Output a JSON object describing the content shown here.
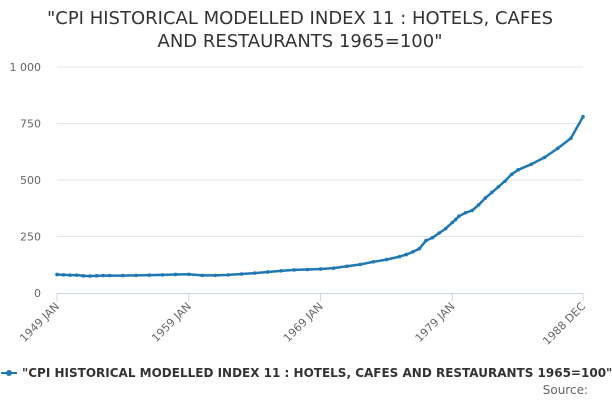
{
  "chart_data": {
    "type": "line",
    "title_lines": [
      "\"CPI HISTORICAL MODELLED INDEX 11 : HOTELS, CAFES",
      "AND RESTAURANTS 1965=100\""
    ],
    "xlabel": "",
    "ylabel": "",
    "ylim": [
      0,
      1000
    ],
    "yticks": [
      0,
      250,
      500,
      750,
      1000
    ],
    "ytick_labels": [
      "0",
      "250",
      "500",
      "750",
      "1 000"
    ],
    "xlim": [
      "1949-01",
      "1988-12"
    ],
    "xticks": [
      "1949-01",
      "1959-01",
      "1969-01",
      "1979-01",
      "1988-12"
    ],
    "xtick_labels": [
      "1949 JAN",
      "1959 JAN",
      "1969 JAN",
      "1979 JAN",
      "1988 DEC"
    ],
    "grid": "horizontal",
    "legend_position": "bottom",
    "series": [
      {
        "name": "\"CPI HISTORICAL MODELLED INDEX 11 : HOTELS, CAFES AND RESTAURANTS 1965=100\"",
        "color": "#1f78b4",
        "x": [
          "1949-01",
          "1949-07",
          "1950-01",
          "1950-07",
          "1951-01",
          "1951-07",
          "1952-01",
          "1952-07",
          "1953-01",
          "1954-01",
          "1955-01",
          "1956-01",
          "1957-01",
          "1958-01",
          "1959-01",
          "1960-01",
          "1961-01",
          "1962-01",
          "1963-01",
          "1964-01",
          "1965-01",
          "1966-01",
          "1967-01",
          "1968-01",
          "1969-01",
          "1970-01",
          "1971-01",
          "1972-01",
          "1973-01",
          "1974-01",
          "1975-01",
          "1975-07",
          "1976-01",
          "1976-07",
          "1977-01",
          "1977-07",
          "1978-01",
          "1978-07",
          "1979-01",
          "1979-04",
          "1979-07",
          "1980-01",
          "1980-07",
          "1981-01",
          "1981-07",
          "1982-01",
          "1982-07",
          "1983-01",
          "1983-07",
          "1984-01",
          "1985-01",
          "1986-01",
          "1987-01",
          "1988-01",
          "1988-12"
        ],
        "values": [
          82,
          80,
          79,
          79,
          76,
          75,
          76,
          77,
          77,
          77,
          78,
          79,
          80,
          82,
          83,
          78,
          78,
          80,
          84,
          88,
          93,
          98,
          102,
          104,
          106,
          110,
          118,
          126,
          138,
          148,
          161,
          170,
          182,
          196,
          232,
          245,
          265,
          285,
          312,
          325,
          340,
          355,
          365,
          390,
          420,
          445,
          470,
          495,
          525,
          545,
          570,
          600,
          640,
          685,
          780
        ]
      }
    ]
  },
  "source_label": "Source:"
}
